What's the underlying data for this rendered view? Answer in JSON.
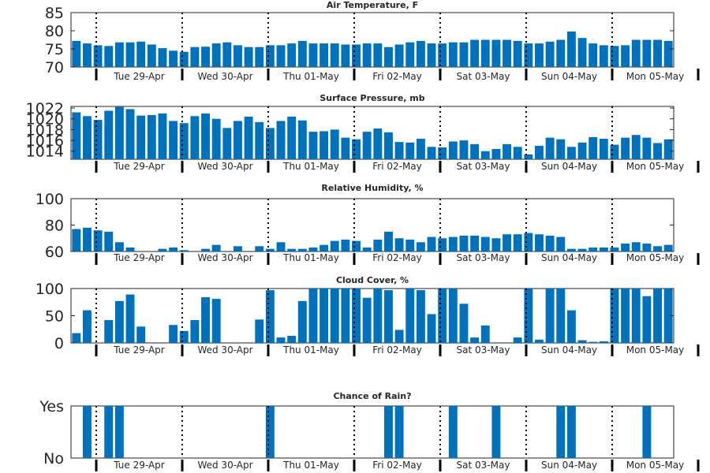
{
  "day_labels": [
    "Tue 29-Apr",
    "Wed 30-Apr",
    "Thu 01-May",
    "Fri 02-May",
    "Sat 03-May",
    "Sun 04-May",
    "Mon 05-May"
  ],
  "colors": {
    "bar": "#0072bd",
    "axes": "#262626",
    "divider": "#000000"
  },
  "chart_data": [
    {
      "type": "bar",
      "title": "Air Temperature, F",
      "ylim": [
        70,
        85
      ],
      "yticks": [
        70,
        75,
        80,
        85
      ],
      "values": [
        77.2,
        76.5,
        76,
        75.8,
        76.8,
        76.8,
        77,
        76.2,
        75.2,
        74.5,
        74.2,
        75.5,
        75.6,
        76.5,
        76.8,
        76,
        75.5,
        75.5,
        76,
        76,
        76.5,
        77.2,
        76.5,
        76.5,
        76.5,
        76.2,
        76.2,
        76.5,
        76.5,
        75.5,
        76.2,
        76.8,
        77.2,
        76.5,
        76.5,
        76.8,
        76.8,
        77.5,
        77.5,
        77.5,
        77.5,
        77.2,
        76.5,
        76.5,
        77,
        77.5,
        79.8,
        78,
        76.5,
        76,
        75.8,
        76,
        77.5,
        77.5,
        77.5,
        77.2
      ]
    },
    {
      "type": "bar",
      "title": "Surface Pressure, mb",
      "ylim": [
        1012.5,
        1022.3
      ],
      "yticks": [
        1014,
        1016,
        1018,
        1020,
        1022
      ],
      "values": [
        1021.2,
        1020.5,
        1019.8,
        1021.5,
        1022.2,
        1021.8,
        1020.6,
        1020.7,
        1021,
        1019.6,
        1019.2,
        1020.5,
        1021,
        1020,
        1018.3,
        1019.6,
        1020.4,
        1019.4,
        1018.3,
        1019.6,
        1020.4,
        1019.7,
        1017.6,
        1017.7,
        1018,
        1016.5,
        1016.2,
        1017.6,
        1018.2,
        1017.5,
        1015.7,
        1015.6,
        1016.3,
        1014.8,
        1014.7,
        1015.8,
        1016,
        1015.3,
        1014,
        1014.4,
        1015.3,
        1014.8,
        1013.4,
        1015,
        1016.5,
        1016.2,
        1014.8,
        1015.6,
        1016.6,
        1016.3,
        1015.2,
        1016.5,
        1017,
        1016.5,
        1015.5,
        1016.2
      ]
    },
    {
      "type": "bar",
      "title": "Relative Humidity, %",
      "ylim": [
        60,
        100
      ],
      "yticks": [
        60,
        80,
        100
      ],
      "values": [
        77,
        78,
        76,
        75,
        67,
        63,
        60,
        60,
        62,
        63,
        61,
        60,
        62,
        65,
        60,
        64,
        60,
        64,
        62,
        67,
        62,
        62,
        63,
        65,
        68,
        69,
        68,
        63,
        69,
        75,
        70,
        69,
        67,
        71,
        70,
        71,
        72,
        72,
        71,
        70,
        73,
        73,
        74,
        73,
        72,
        71,
        62,
        62,
        63,
        63,
        63,
        66,
        67,
        66,
        64,
        65
      ]
    },
    {
      "type": "bar",
      "title": "Cloud Cover, %",
      "ylim": [
        0,
        100
      ],
      "yticks": [
        0,
        50,
        100
      ],
      "values": [
        18,
        60,
        0,
        42,
        77,
        89,
        30,
        0,
        0,
        33,
        22,
        42,
        84,
        81,
        0,
        0,
        0,
        43,
        97,
        10,
        13,
        77,
        100,
        100,
        100,
        100,
        100,
        83,
        100,
        97,
        24,
        100,
        97,
        53,
        100,
        100,
        72,
        10,
        32,
        0,
        0,
        10,
        100,
        6,
        100,
        100,
        60,
        5,
        2,
        3,
        100,
        100,
        100,
        86,
        100,
        100
      ]
    },
    {
      "type": "bar",
      "title": "Chance of Rain?",
      "ylim": [
        0,
        1
      ],
      "ytick_labels": [
        "No",
        "Yes"
      ],
      "values": [
        0,
        1,
        0,
        1,
        1,
        0,
        0,
        0,
        0,
        0,
        0,
        0,
        0,
        0,
        0,
        0,
        0,
        0,
        1,
        0,
        0,
        0,
        0,
        0,
        0,
        0,
        0,
        0,
        0,
        1,
        1,
        0,
        0,
        0,
        0,
        1,
        0,
        0,
        0,
        1,
        0,
        0,
        0,
        0,
        0,
        1,
        1,
        0,
        0,
        0,
        0,
        0,
        0,
        1,
        0,
        0
      ]
    }
  ]
}
